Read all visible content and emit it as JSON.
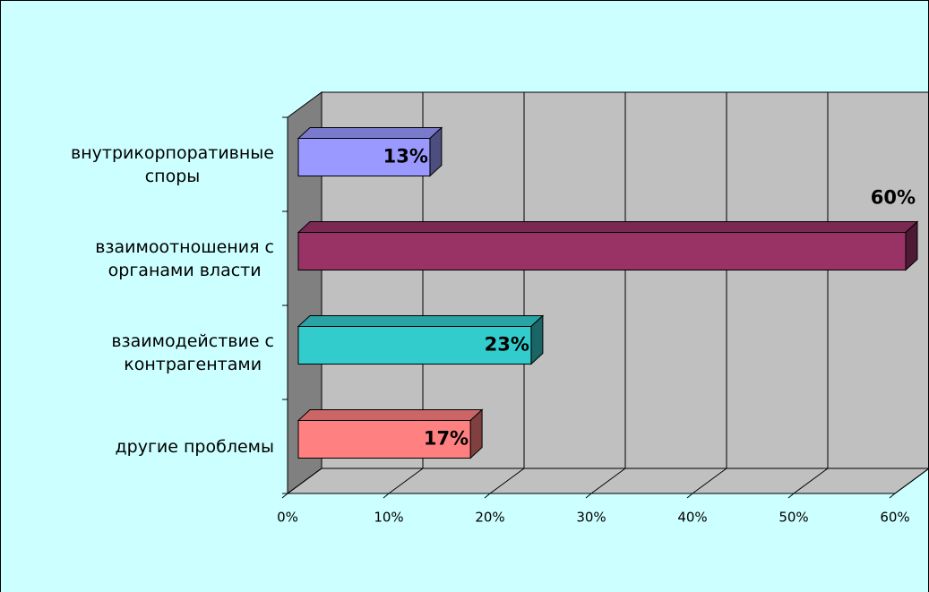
{
  "chart_data": {
    "type": "bar3d_horizontal",
    "categories": [
      "внутрикорпоративные\nспоры",
      "взаимоотношения с\nорганами власти",
      "взаимодействие с\nконтрагентами",
      "другие проблемы"
    ],
    "values": [
      13,
      60,
      23,
      17
    ],
    "value_labels": [
      "13%",
      "60%",
      "23%",
      "17%"
    ],
    "colors": [
      "#9999ff",
      "#993366",
      "#33cccc",
      "#ff8080"
    ],
    "xlim": [
      0,
      60
    ],
    "xticks": [
      {
        "value": 0,
        "label": "0%"
      },
      {
        "value": 10,
        "label": "10%"
      },
      {
        "value": 20,
        "label": "20%"
      },
      {
        "value": 30,
        "label": "30%"
      },
      {
        "value": 40,
        "label": "40%"
      },
      {
        "value": 50,
        "label": "50%"
      },
      {
        "value": 60,
        "label": "60%"
      }
    ],
    "grid": true
  }
}
